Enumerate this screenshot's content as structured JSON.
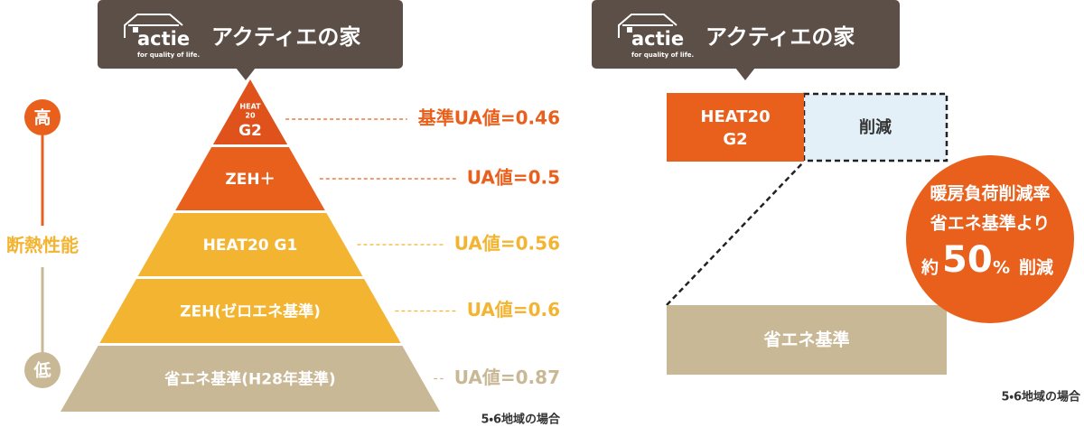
{
  "left": {
    "header": {
      "brand": "actie",
      "tagline": "for quality of life.",
      "title": "アクティエの家"
    },
    "axis": {
      "high": "高",
      "label": "断熱性能",
      "low": "低"
    },
    "levels": [
      {
        "name_lines": [
          "HEAT",
          "20",
          "G2"
        ],
        "ua": "基準UA値=0.46"
      },
      {
        "name": "ZEH＋",
        "ua": "UA値=0.5"
      },
      {
        "name": "HEAT20 G1",
        "ua": "UA値=0.56"
      },
      {
        "name": "ZEH(ゼロエネ基準)",
        "ua": "UA値=0.6"
      },
      {
        "name": "省エネ基準(H28年基準)",
        "ua": "UA値=0.87"
      }
    ],
    "note": "5・6地域の場合"
  },
  "right": {
    "header": {
      "brand": "actie",
      "tagline": "for quality of life.",
      "title": "アクティエの家"
    },
    "heat20": [
      "HEAT20",
      "G2"
    ],
    "reduction": "削減",
    "standard": "省エネ基準",
    "circle": {
      "line1": "暖房負荷削減率",
      "line2": "省エネ基準より",
      "prefix": "約",
      "number": "50",
      "unit": "%",
      "suffix": "削減"
    },
    "note": "5・6地域の場合"
  }
}
